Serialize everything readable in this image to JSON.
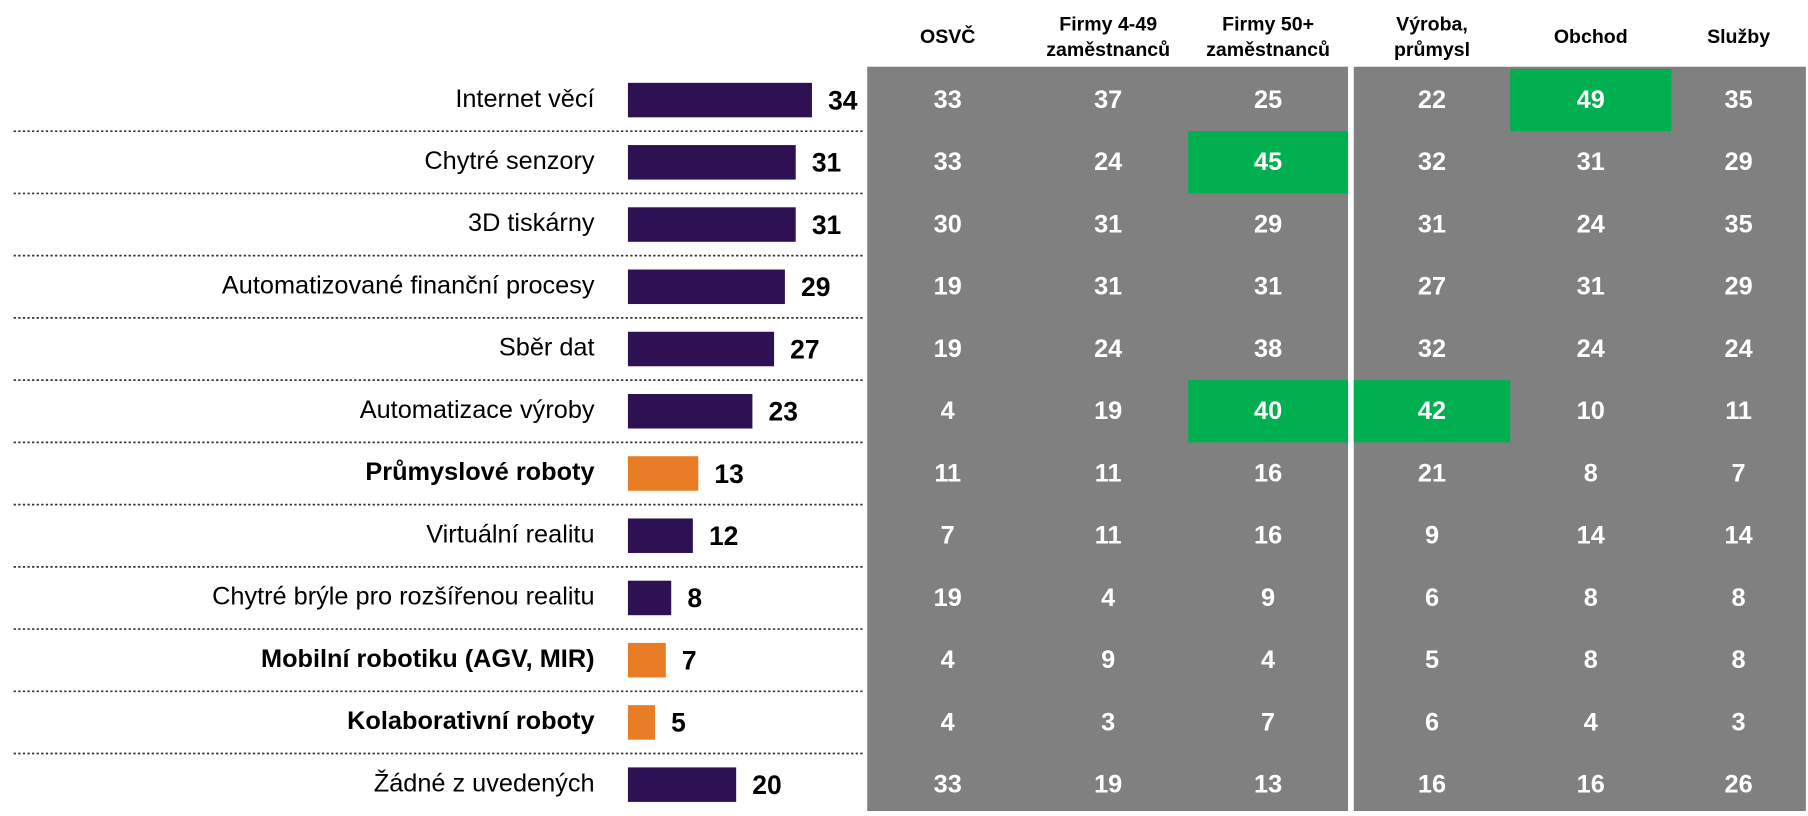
{
  "chart_data": {
    "type": "bar",
    "categories": [
      "Internet věcí",
      "Chytré senzory",
      "3D tiskárny",
      "Automatizované finanční procesy",
      "Sběr dat",
      "Automatizace výroby",
      "Průmyslové roboty",
      "Virtuální realitu",
      "Chytré brýle pro rozšířenou realitu",
      "Mobilní robotiku (AGV, MIR)",
      "Kolaborativní roboty",
      "Žádné z uvedených"
    ],
    "values": [
      34,
      31,
      31,
      29,
      27,
      23,
      13,
      12,
      8,
      7,
      5,
      20
    ],
    "color": "#2e1152",
    "colors": [
      "#2e1152",
      "#2e1152",
      "#2e1152",
      "#2e1152",
      "#2e1152",
      "#2e1152",
      "#e87d26",
      "#2e1152",
      "#2e1152",
      "#e87d26",
      "#e87d26",
      "#2e1152"
    ]
  },
  "table": {
    "headers": [
      [
        "OSVČ"
      ],
      [
        "Firmy 4-49",
        "zaměstnanců"
      ],
      [
        "Firmy 50+",
        "zaměstnanců"
      ],
      [
        "Výroba,",
        "průmysl"
      ],
      [
        "Obchod"
      ],
      [
        "Služby"
      ]
    ],
    "rows": [
      [
        33,
        37,
        25,
        22,
        49,
        35
      ],
      [
        33,
        24,
        45,
        32,
        31,
        29
      ],
      [
        30,
        31,
        29,
        31,
        24,
        35
      ],
      [
        19,
        31,
        31,
        27,
        31,
        29
      ],
      [
        19,
        24,
        38,
        32,
        24,
        24
      ],
      [
        4,
        19,
        40,
        42,
        10,
        11
      ],
      [
        11,
        11,
        16,
        21,
        8,
        7
      ],
      [
        7,
        11,
        16,
        9,
        14,
        14
      ],
      [
        19,
        4,
        9,
        6,
        8,
        8
      ],
      [
        4,
        9,
        4,
        5,
        8,
        8
      ],
      [
        4,
        3,
        7,
        6,
        4,
        3
      ],
      [
        33,
        19,
        13,
        16,
        16,
        26
      ]
    ],
    "background": "#808080",
    "highlight_color": "#00b050",
    "highlighted": [
      [
        0,
        4
      ],
      [
        1,
        2
      ],
      [
        5,
        2
      ],
      [
        5,
        3
      ]
    ]
  }
}
